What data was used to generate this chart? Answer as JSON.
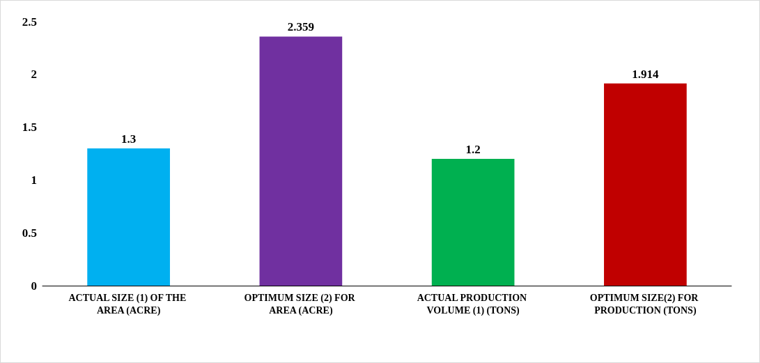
{
  "chart_data": {
    "type": "bar",
    "categories": [
      "ACTUAL SIZE (1) OF THE AREA (ACRE)",
      "OPTIMUM SIZE (2) FOR AREA (ACRE)",
      "ACTUAL PRODUCTION VOLUME (1) (TONS)",
      "OPTIMUM SIZE(2) FOR PRODUCTION (TONS)"
    ],
    "values": [
      1.3,
      2.359,
      1.2,
      1.914
    ],
    "colors": [
      "#00b0f0",
      "#7030a0",
      "#00b050",
      "#c00000"
    ],
    "ylim": [
      0,
      2.5
    ],
    "yticks": [
      0,
      0.5,
      1,
      1.5,
      2,
      2.5
    ],
    "data_labels": true
  }
}
